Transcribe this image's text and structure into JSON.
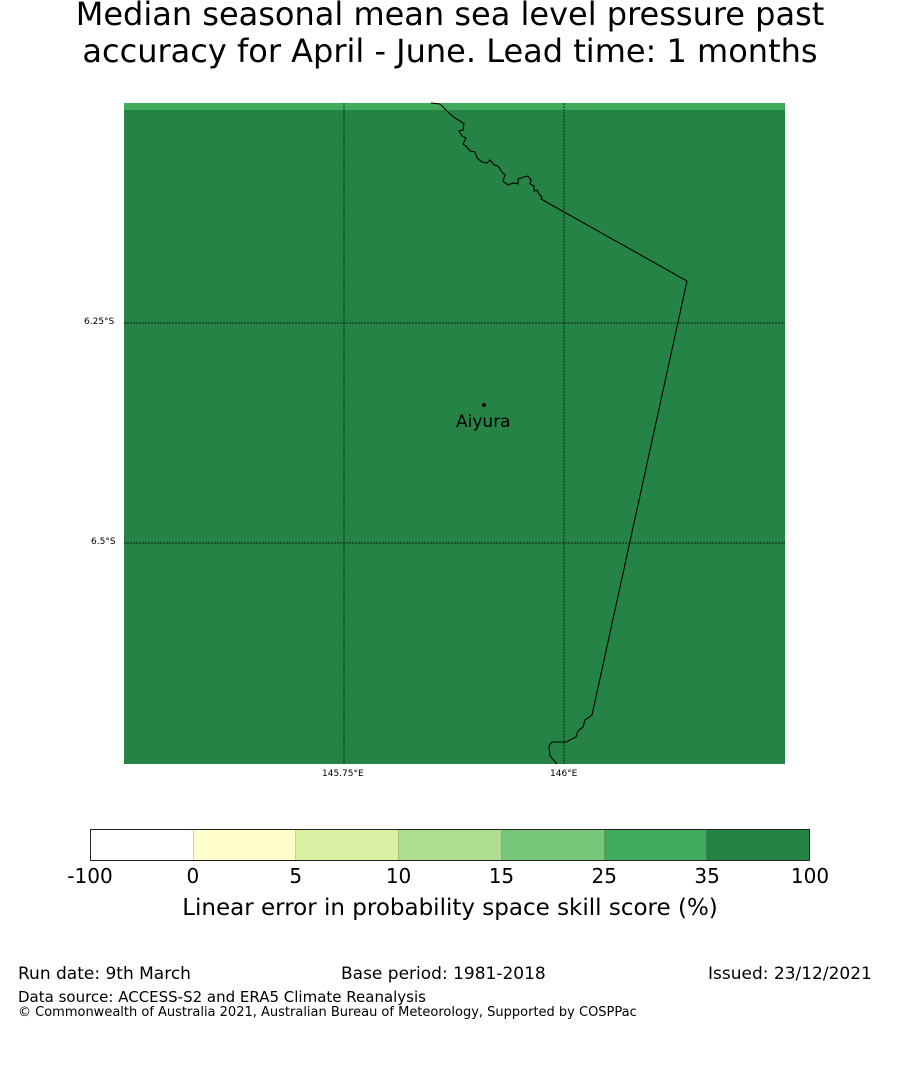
{
  "title": {
    "line1": "Median seasonal mean sea level pressure past",
    "line2": "accuracy for April - June. Lead time: 1 months"
  },
  "map": {
    "fill_color": "#258445",
    "top_strip_color": "#41ab5d",
    "lat_labels": [
      "6.25°S",
      "6.5°S"
    ],
    "lon_labels": [
      "145.75°E",
      "146°E"
    ],
    "location": {
      "name": "Aiyura"
    }
  },
  "colorbar": {
    "colors": [
      "#ffffff",
      "#ffffcc",
      "#d9f0a3",
      "#addd8e",
      "#78c679",
      "#41ab5d",
      "#238443"
    ],
    "ticks": [
      "-100",
      "0",
      "5",
      "10",
      "15",
      "25",
      "35",
      "100"
    ],
    "label": "Linear error in probability space skill score (%)"
  },
  "footer": {
    "run_date": "Run date: 9th March",
    "base_period": "Base period: 1981-2018",
    "issued": "Issued: 23/12/2021",
    "data_source": "Data source: ACCESS-S2 and ERA5 Climate Reanalysis",
    "copyright": "© Commonwealth of Australia 2021, Australian Bureau of Meteorology, Supported by COSPPac"
  }
}
